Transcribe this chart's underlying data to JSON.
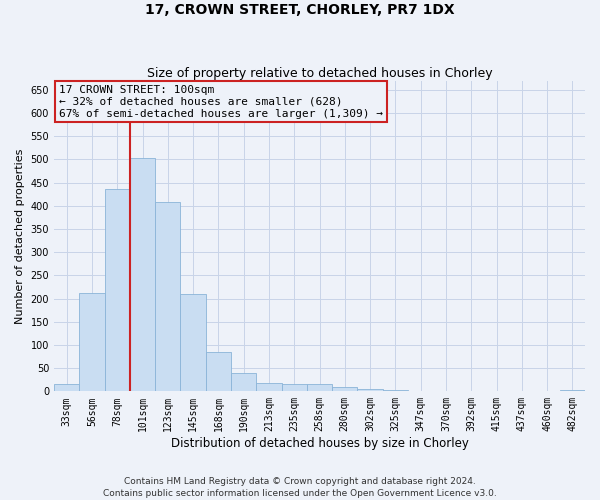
{
  "title": "17, CROWN STREET, CHORLEY, PR7 1DX",
  "subtitle": "Size of property relative to detached houses in Chorley",
  "xlabel": "Distribution of detached houses by size in Chorley",
  "ylabel": "Number of detached properties",
  "categories": [
    "33sqm",
    "56sqm",
    "78sqm",
    "101sqm",
    "123sqm",
    "145sqm",
    "168sqm",
    "190sqm",
    "213sqm",
    "235sqm",
    "258sqm",
    "280sqm",
    "302sqm",
    "325sqm",
    "347sqm",
    "370sqm",
    "392sqm",
    "415sqm",
    "437sqm",
    "460sqm",
    "482sqm"
  ],
  "values": [
    15,
    213,
    437,
    503,
    408,
    209,
    84,
    40,
    18,
    15,
    15,
    10,
    5,
    2,
    1,
    1,
    0,
    0,
    0,
    0,
    3
  ],
  "bar_color": "#c9ddf2",
  "bar_edge_color": "#8ab4d8",
  "grid_color": "#c8d4e8",
  "background_color": "#eef2f9",
  "vline_x_index": 3,
  "vline_color": "#cc2222",
  "annotation_text": "17 CROWN STREET: 100sqm\n← 32% of detached houses are smaller (628)\n67% of semi-detached houses are larger (1,309) →",
  "annotation_box_color": "#cc2222",
  "ylim": [
    0,
    670
  ],
  "yticks": [
    0,
    50,
    100,
    150,
    200,
    250,
    300,
    350,
    400,
    450,
    500,
    550,
    600,
    650
  ],
  "footer": "Contains HM Land Registry data © Crown copyright and database right 2024.\nContains public sector information licensed under the Open Government Licence v3.0.",
  "title_fontsize": 10,
  "subtitle_fontsize": 9,
  "xlabel_fontsize": 8.5,
  "ylabel_fontsize": 8,
  "tick_fontsize": 7,
  "annotation_fontsize": 8,
  "footer_fontsize": 6.5
}
